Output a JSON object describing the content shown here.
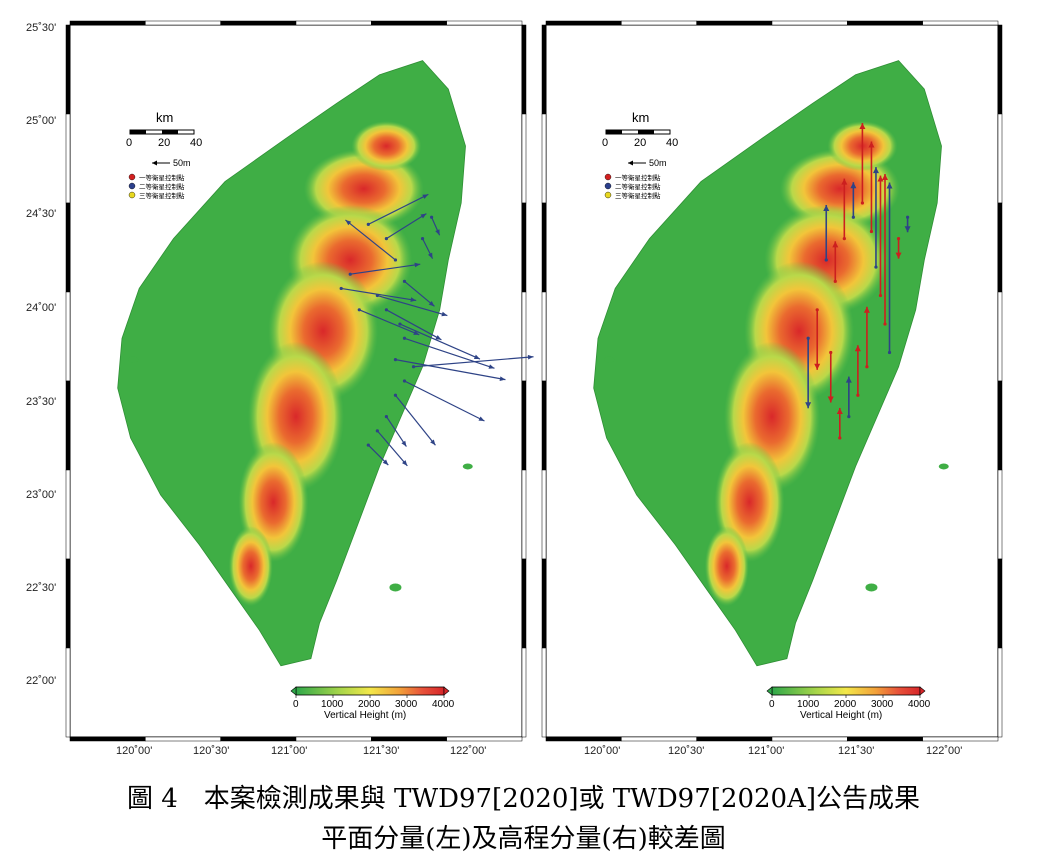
{
  "map": {
    "lat_labels": [
      "25˚30'",
      "25˚00'",
      "24˚30'",
      "24˚00'",
      "23˚30'",
      "23˚00'",
      "22˚30'",
      "22˚00'"
    ],
    "lon_labels": [
      "120˚00'",
      "120˚30'",
      "121˚00'",
      "121˚30'",
      "122˚00'"
    ],
    "scale_bar": {
      "unit": "km",
      "ticks": [
        "0",
        "20",
        "40"
      ]
    },
    "arrow_ref": "50m",
    "legend": [
      {
        "label": "一等衛星控制點",
        "color": "#d32020"
      },
      {
        "label": "二等衛星控制點",
        "color": "#2b3f8c"
      },
      {
        "label": "三等衛星控制點",
        "color": "#e8d820"
      }
    ],
    "colorbar": {
      "ticks": [
        "0",
        "1000",
        "2000",
        "3000",
        "4000"
      ],
      "title": "Vertical Height (m)"
    },
    "vector_color": "#2e4386",
    "height_vector_color": "#cc1f1f"
  },
  "caption": {
    "line1": "圖 4　本案檢測成果與 TWD97[2020]或 TWD97[2020A]公告成果",
    "line2": "平面分量(左)及高程分量(右)較差圖"
  }
}
